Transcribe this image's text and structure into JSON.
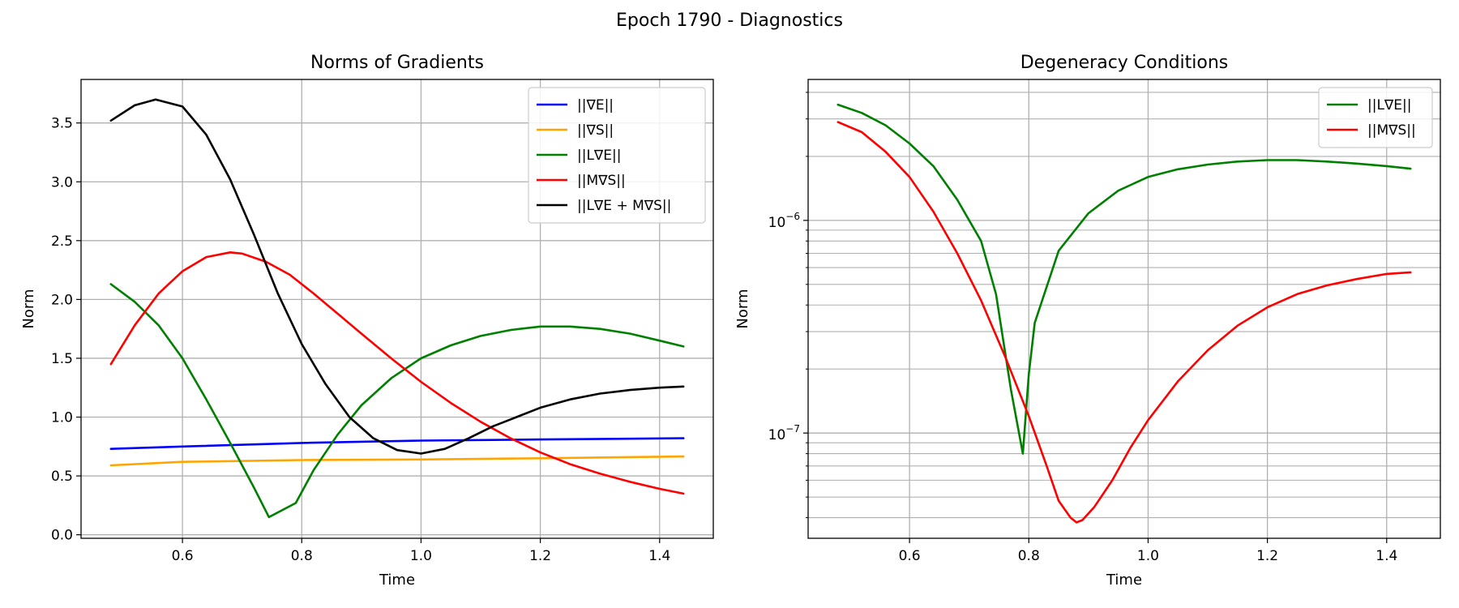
{
  "figure": {
    "title": "Epoch 1790 - Diagnostics"
  },
  "colors": {
    "E": "#0000ff",
    "S": "#ffa500",
    "LE": "#008000",
    "MS": "#ff0000",
    "sum": "#000000",
    "grid": "#b0b0b0"
  },
  "chart_data": [
    {
      "type": "line",
      "title": "Norms of Gradients",
      "xlabel": "Time",
      "ylabel": "Norm",
      "xlim": [
        0.43,
        1.49
      ],
      "ylim": [
        -0.03,
        3.87
      ],
      "yscale": "linear",
      "xticks": [
        0.6,
        0.8,
        1.0,
        1.2,
        1.4
      ],
      "xtick_labels": [
        "0.6",
        "0.8",
        "1.0",
        "1.2",
        "1.4"
      ],
      "yticks": [
        0.0,
        0.5,
        1.0,
        1.5,
        2.0,
        2.5,
        3.0,
        3.5
      ],
      "ytick_labels": [
        "0.0",
        "0.5",
        "1.0",
        "1.5",
        "2.0",
        "2.5",
        "3.0",
        "3.5"
      ],
      "grid": true,
      "legend": "top-right",
      "series": [
        {
          "name": "||∇E||",
          "color_key": "E",
          "x": [
            0.48,
            0.6,
            0.8,
            1.0,
            1.2,
            1.44
          ],
          "y": [
            0.73,
            0.75,
            0.78,
            0.8,
            0.81,
            0.82
          ]
        },
        {
          "name": "||∇S||",
          "color_key": "S",
          "x": [
            0.48,
            0.6,
            0.8,
            1.0,
            1.2,
            1.44
          ],
          "y": [
            0.59,
            0.62,
            0.635,
            0.64,
            0.65,
            0.665
          ]
        },
        {
          "name": "||L∇E||",
          "color_key": "LE",
          "x": [
            0.48,
            0.52,
            0.56,
            0.6,
            0.64,
            0.68,
            0.72,
            0.745,
            0.79,
            0.82,
            0.86,
            0.9,
            0.95,
            1.0,
            1.05,
            1.1,
            1.15,
            1.2,
            1.25,
            1.3,
            1.35,
            1.4,
            1.44
          ],
          "y": [
            2.13,
            1.98,
            1.78,
            1.5,
            1.15,
            0.78,
            0.4,
            0.15,
            0.27,
            0.55,
            0.85,
            1.1,
            1.33,
            1.5,
            1.61,
            1.69,
            1.74,
            1.77,
            1.77,
            1.75,
            1.71,
            1.65,
            1.6
          ]
        },
        {
          "name": "||M∇S||",
          "color_key": "MS",
          "x": [
            0.48,
            0.52,
            0.56,
            0.6,
            0.64,
            0.68,
            0.7,
            0.74,
            0.78,
            0.82,
            0.86,
            0.9,
            0.95,
            1.0,
            1.05,
            1.1,
            1.15,
            1.2,
            1.25,
            1.3,
            1.35,
            1.4,
            1.44
          ],
          "y": [
            1.45,
            1.78,
            2.05,
            2.24,
            2.36,
            2.4,
            2.39,
            2.32,
            2.21,
            2.05,
            1.88,
            1.71,
            1.5,
            1.3,
            1.12,
            0.96,
            0.82,
            0.7,
            0.6,
            0.52,
            0.45,
            0.39,
            0.35
          ]
        },
        {
          "name": "||L∇E + M∇S||",
          "color_key": "sum",
          "x": [
            0.48,
            0.52,
            0.555,
            0.6,
            0.64,
            0.68,
            0.72,
            0.76,
            0.8,
            0.84,
            0.88,
            0.92,
            0.96,
            1.0,
            1.04,
            1.08,
            1.12,
            1.16,
            1.2,
            1.25,
            1.3,
            1.35,
            1.4,
            1.44
          ],
          "y": [
            3.52,
            3.65,
            3.7,
            3.64,
            3.4,
            3.02,
            2.55,
            2.05,
            1.62,
            1.28,
            1.0,
            0.82,
            0.72,
            0.69,
            0.73,
            0.82,
            0.92,
            1.0,
            1.08,
            1.15,
            1.2,
            1.23,
            1.25,
            1.26
          ]
        }
      ]
    },
    {
      "type": "line",
      "title": "Degeneracy Conditions",
      "xlabel": "Time",
      "ylabel": "Norm",
      "xlim": [
        0.43,
        1.49
      ],
      "ylim": [
        3.2e-08,
        4.6e-06
      ],
      "yscale": "log",
      "xticks": [
        0.6,
        0.8,
        1.0,
        1.2,
        1.4
      ],
      "xtick_labels": [
        "0.6",
        "0.8",
        "1.0",
        "1.2",
        "1.4"
      ],
      "yticks_major": [
        1e-07,
        1e-06
      ],
      "ytick_labels": [
        {
          "base": "10",
          "exp": "−7"
        },
        {
          "base": "10",
          "exp": "−6"
        }
      ],
      "yticks_minor": [
        4e-08,
        5e-08,
        6e-08,
        7e-08,
        8e-08,
        9e-08,
        2e-07,
        3e-07,
        4e-07,
        5e-07,
        6e-07,
        7e-07,
        8e-07,
        9e-07,
        2e-06,
        3e-06,
        4e-06
      ],
      "grid": true,
      "legend": "top-right",
      "series": [
        {
          "name": "||L∇E||",
          "color_key": "LE",
          "x": [
            0.48,
            0.52,
            0.56,
            0.6,
            0.64,
            0.68,
            0.72,
            0.745,
            0.77,
            0.79,
            0.8,
            0.81,
            0.85,
            0.9,
            0.95,
            1.0,
            1.05,
            1.1,
            1.15,
            1.2,
            1.25,
            1.3,
            1.35,
            1.4,
            1.44
          ],
          "y": [
            3.5e-06,
            3.2e-06,
            2.8e-06,
            2.3e-06,
            1.8e-06,
            1.25e-06,
            8e-07,
            4.5e-07,
            1.6e-07,
            8e-08,
            1.9e-07,
            3.3e-07,
            7.2e-07,
            1.08e-06,
            1.38e-06,
            1.6e-06,
            1.74e-06,
            1.83e-06,
            1.89e-06,
            1.92e-06,
            1.92e-06,
            1.89e-06,
            1.85e-06,
            1.8e-06,
            1.75e-06
          ]
        },
        {
          "name": "||M∇S||",
          "color_key": "MS",
          "x": [
            0.48,
            0.52,
            0.56,
            0.6,
            0.64,
            0.68,
            0.72,
            0.76,
            0.8,
            0.83,
            0.85,
            0.87,
            0.88,
            0.89,
            0.91,
            0.94,
            0.97,
            1.0,
            1.05,
            1.1,
            1.15,
            1.2,
            1.25,
            1.3,
            1.35,
            1.4,
            1.44
          ],
          "y": [
            2.9e-06,
            2.6e-06,
            2.1e-06,
            1.6e-06,
            1.1e-06,
            7e-07,
            4.2e-07,
            2.3e-07,
            1.2e-07,
            7e-08,
            4.8e-08,
            4e-08,
            3.8e-08,
            3.9e-08,
            4.5e-08,
            6e-08,
            8.5e-08,
            1.15e-07,
            1.75e-07,
            2.45e-07,
            3.2e-07,
            3.9e-07,
            4.5e-07,
            4.95e-07,
            5.3e-07,
            5.6e-07,
            5.7e-07
          ]
        }
      ]
    }
  ]
}
